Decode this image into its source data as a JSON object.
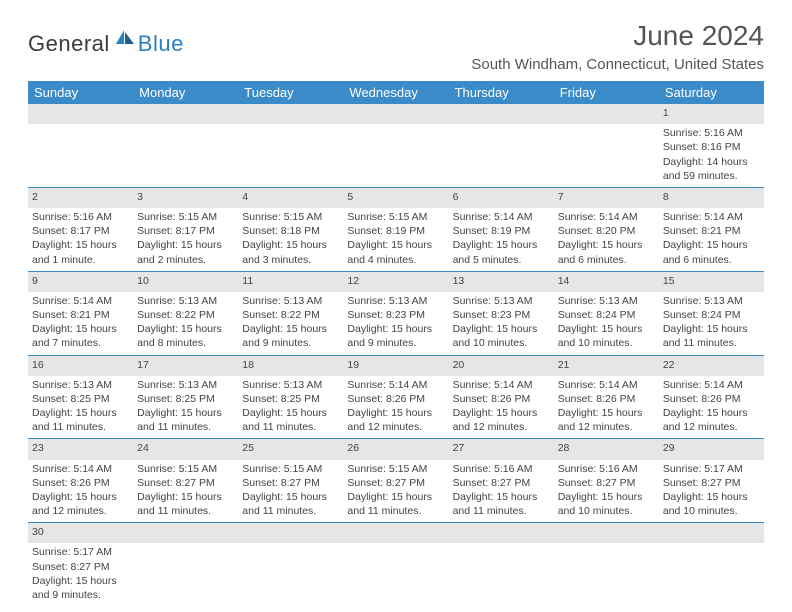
{
  "logo": {
    "dark": "General",
    "blue": "Blue"
  },
  "title": "June 2024",
  "location": "South Windham, Connecticut, United States",
  "colors": {
    "header_bg": "#3b8bc8",
    "header_text": "#ffffff",
    "daynum_bg": "#e6e6e6",
    "border": "#3b8bc8",
    "logo_dark": "#3b3b3b",
    "logo_blue": "#2a7fbf"
  },
  "weekdays": [
    "Sunday",
    "Monday",
    "Tuesday",
    "Wednesday",
    "Thursday",
    "Friday",
    "Saturday"
  ],
  "weeks": [
    {
      "nums": [
        "",
        "",
        "",
        "",
        "",
        "",
        "1"
      ],
      "cells": [
        null,
        null,
        null,
        null,
        null,
        null,
        {
          "sunrise": "Sunrise: 5:16 AM",
          "sunset": "Sunset: 8:16 PM",
          "daylight1": "Daylight: 14 hours",
          "daylight2": "and 59 minutes."
        }
      ]
    },
    {
      "nums": [
        "2",
        "3",
        "4",
        "5",
        "6",
        "7",
        "8"
      ],
      "cells": [
        {
          "sunrise": "Sunrise: 5:16 AM",
          "sunset": "Sunset: 8:17 PM",
          "daylight1": "Daylight: 15 hours",
          "daylight2": "and 1 minute."
        },
        {
          "sunrise": "Sunrise: 5:15 AM",
          "sunset": "Sunset: 8:17 PM",
          "daylight1": "Daylight: 15 hours",
          "daylight2": "and 2 minutes."
        },
        {
          "sunrise": "Sunrise: 5:15 AM",
          "sunset": "Sunset: 8:18 PM",
          "daylight1": "Daylight: 15 hours",
          "daylight2": "and 3 minutes."
        },
        {
          "sunrise": "Sunrise: 5:15 AM",
          "sunset": "Sunset: 8:19 PM",
          "daylight1": "Daylight: 15 hours",
          "daylight2": "and 4 minutes."
        },
        {
          "sunrise": "Sunrise: 5:14 AM",
          "sunset": "Sunset: 8:19 PM",
          "daylight1": "Daylight: 15 hours",
          "daylight2": "and 5 minutes."
        },
        {
          "sunrise": "Sunrise: 5:14 AM",
          "sunset": "Sunset: 8:20 PM",
          "daylight1": "Daylight: 15 hours",
          "daylight2": "and 6 minutes."
        },
        {
          "sunrise": "Sunrise: 5:14 AM",
          "sunset": "Sunset: 8:21 PM",
          "daylight1": "Daylight: 15 hours",
          "daylight2": "and 6 minutes."
        }
      ]
    },
    {
      "nums": [
        "9",
        "10",
        "11",
        "12",
        "13",
        "14",
        "15"
      ],
      "cells": [
        {
          "sunrise": "Sunrise: 5:14 AM",
          "sunset": "Sunset: 8:21 PM",
          "daylight1": "Daylight: 15 hours",
          "daylight2": "and 7 minutes."
        },
        {
          "sunrise": "Sunrise: 5:13 AM",
          "sunset": "Sunset: 8:22 PM",
          "daylight1": "Daylight: 15 hours",
          "daylight2": "and 8 minutes."
        },
        {
          "sunrise": "Sunrise: 5:13 AM",
          "sunset": "Sunset: 8:22 PM",
          "daylight1": "Daylight: 15 hours",
          "daylight2": "and 9 minutes."
        },
        {
          "sunrise": "Sunrise: 5:13 AM",
          "sunset": "Sunset: 8:23 PM",
          "daylight1": "Daylight: 15 hours",
          "daylight2": "and 9 minutes."
        },
        {
          "sunrise": "Sunrise: 5:13 AM",
          "sunset": "Sunset: 8:23 PM",
          "daylight1": "Daylight: 15 hours",
          "daylight2": "and 10 minutes."
        },
        {
          "sunrise": "Sunrise: 5:13 AM",
          "sunset": "Sunset: 8:24 PM",
          "daylight1": "Daylight: 15 hours",
          "daylight2": "and 10 minutes."
        },
        {
          "sunrise": "Sunrise: 5:13 AM",
          "sunset": "Sunset: 8:24 PM",
          "daylight1": "Daylight: 15 hours",
          "daylight2": "and 11 minutes."
        }
      ]
    },
    {
      "nums": [
        "16",
        "17",
        "18",
        "19",
        "20",
        "21",
        "22"
      ],
      "cells": [
        {
          "sunrise": "Sunrise: 5:13 AM",
          "sunset": "Sunset: 8:25 PM",
          "daylight1": "Daylight: 15 hours",
          "daylight2": "and 11 minutes."
        },
        {
          "sunrise": "Sunrise: 5:13 AM",
          "sunset": "Sunset: 8:25 PM",
          "daylight1": "Daylight: 15 hours",
          "daylight2": "and 11 minutes."
        },
        {
          "sunrise": "Sunrise: 5:13 AM",
          "sunset": "Sunset: 8:25 PM",
          "daylight1": "Daylight: 15 hours",
          "daylight2": "and 11 minutes."
        },
        {
          "sunrise": "Sunrise: 5:14 AM",
          "sunset": "Sunset: 8:26 PM",
          "daylight1": "Daylight: 15 hours",
          "daylight2": "and 12 minutes."
        },
        {
          "sunrise": "Sunrise: 5:14 AM",
          "sunset": "Sunset: 8:26 PM",
          "daylight1": "Daylight: 15 hours",
          "daylight2": "and 12 minutes."
        },
        {
          "sunrise": "Sunrise: 5:14 AM",
          "sunset": "Sunset: 8:26 PM",
          "daylight1": "Daylight: 15 hours",
          "daylight2": "and 12 minutes."
        },
        {
          "sunrise": "Sunrise: 5:14 AM",
          "sunset": "Sunset: 8:26 PM",
          "daylight1": "Daylight: 15 hours",
          "daylight2": "and 12 minutes."
        }
      ]
    },
    {
      "nums": [
        "23",
        "24",
        "25",
        "26",
        "27",
        "28",
        "29"
      ],
      "cells": [
        {
          "sunrise": "Sunrise: 5:14 AM",
          "sunset": "Sunset: 8:26 PM",
          "daylight1": "Daylight: 15 hours",
          "daylight2": "and 12 minutes."
        },
        {
          "sunrise": "Sunrise: 5:15 AM",
          "sunset": "Sunset: 8:27 PM",
          "daylight1": "Daylight: 15 hours",
          "daylight2": "and 11 minutes."
        },
        {
          "sunrise": "Sunrise: 5:15 AM",
          "sunset": "Sunset: 8:27 PM",
          "daylight1": "Daylight: 15 hours",
          "daylight2": "and 11 minutes."
        },
        {
          "sunrise": "Sunrise: 5:15 AM",
          "sunset": "Sunset: 8:27 PM",
          "daylight1": "Daylight: 15 hours",
          "daylight2": "and 11 minutes."
        },
        {
          "sunrise": "Sunrise: 5:16 AM",
          "sunset": "Sunset: 8:27 PM",
          "daylight1": "Daylight: 15 hours",
          "daylight2": "and 11 minutes."
        },
        {
          "sunrise": "Sunrise: 5:16 AM",
          "sunset": "Sunset: 8:27 PM",
          "daylight1": "Daylight: 15 hours",
          "daylight2": "and 10 minutes."
        },
        {
          "sunrise": "Sunrise: 5:17 AM",
          "sunset": "Sunset: 8:27 PM",
          "daylight1": "Daylight: 15 hours",
          "daylight2": "and 10 minutes."
        }
      ]
    },
    {
      "nums": [
        "30",
        "",
        "",
        "",
        "",
        "",
        ""
      ],
      "cells": [
        {
          "sunrise": "Sunrise: 5:17 AM",
          "sunset": "Sunset: 8:27 PM",
          "daylight1": "Daylight: 15 hours",
          "daylight2": "and 9 minutes."
        },
        null,
        null,
        null,
        null,
        null,
        null
      ]
    }
  ]
}
